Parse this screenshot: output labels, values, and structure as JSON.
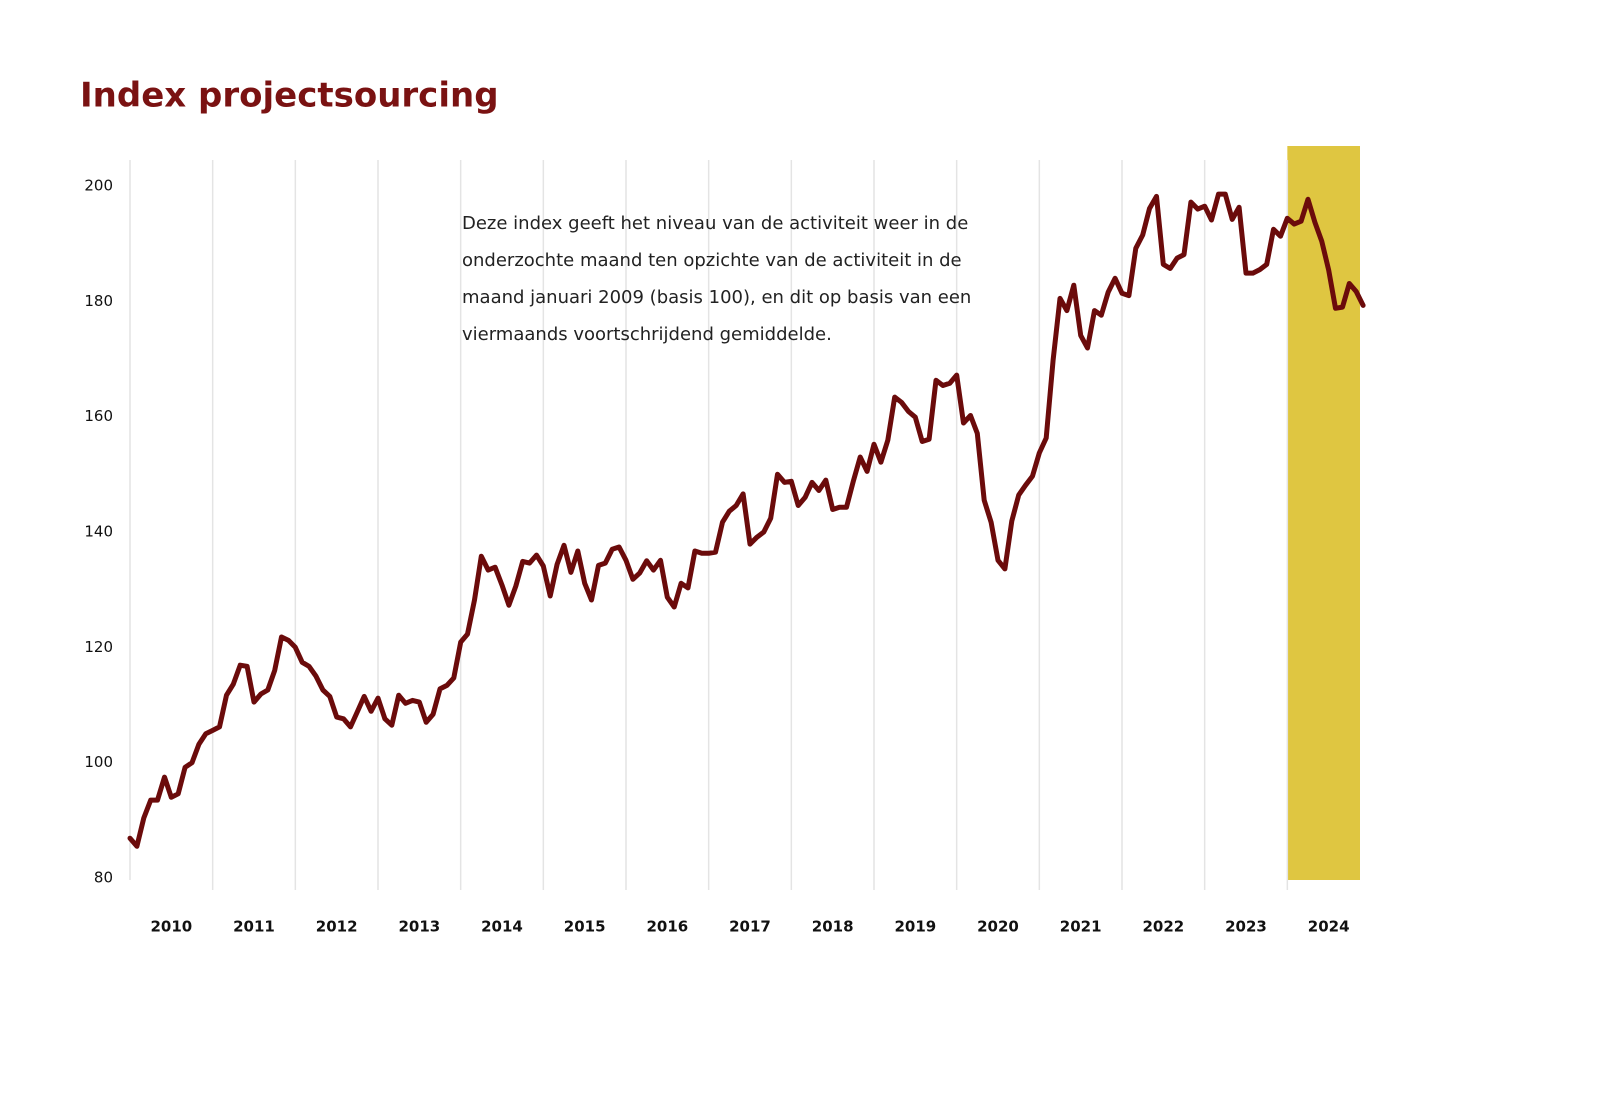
{
  "chart_data": {
    "type": "line",
    "title": "Index projectsourcing",
    "annotation": [
      "Deze index geeft het niveau van de activiteit weer in de",
      "onderzochte maand ten opzichte van de activiteit in de",
      "maand januari 2009 (basis 100), en dit op basis van een",
      "viermaands voortschrijdend gemiddelde."
    ],
    "x": [
      2010,
      2010.083,
      2010.167,
      2010.25,
      2010.333,
      2010.417,
      2010.5,
      2010.583,
      2010.667,
      2010.75,
      2010.833,
      2010.917,
      2011,
      2011.083,
      2011.167,
      2011.25,
      2011.333,
      2011.417,
      2011.5,
      2011.583,
      2011.667,
      2011.75,
      2011.833,
      2011.917,
      2012,
      2012.083,
      2012.167,
      2012.25,
      2012.333,
      2012.417,
      2012.5,
      2012.583,
      2012.667,
      2012.75,
      2012.833,
      2012.917,
      2013,
      2013.083,
      2013.167,
      2013.25,
      2013.333,
      2013.417,
      2013.5,
      2013.583,
      2013.667,
      2013.75,
      2013.833,
      2013.917,
      2014,
      2014.083,
      2014.167,
      2014.25,
      2014.333,
      2014.417,
      2014.5,
      2014.583,
      2014.667,
      2014.75,
      2014.833,
      2014.917,
      2015,
      2015.083,
      2015.167,
      2015.25,
      2015.333,
      2015.417,
      2015.5,
      2015.583,
      2015.667,
      2015.75,
      2015.833,
      2015.917,
      2016,
      2016.083,
      2016.167,
      2016.25,
      2016.333,
      2016.417,
      2016.5,
      2016.583,
      2016.667,
      2016.75,
      2016.833,
      2016.917,
      2017,
      2017.083,
      2017.167,
      2017.25,
      2017.333,
      2017.417,
      2017.5,
      2017.583,
      2017.667,
      2017.75,
      2017.833,
      2017.917,
      2018,
      2018.083,
      2018.167,
      2018.25,
      2018.333,
      2018.417,
      2018.5,
      2018.583,
      2018.667,
      2018.75,
      2018.833,
      2018.917,
      2019,
      2019.083,
      2019.167,
      2019.25,
      2019.333,
      2019.417,
      2019.5,
      2019.583,
      2019.667,
      2019.75,
      2019.833,
      2019.917,
      2020,
      2020.083,
      2020.167,
      2020.25,
      2020.333,
      2020.417,
      2020.5,
      2020.583,
      2020.667,
      2020.75,
      2020.833,
      2020.917,
      2021,
      2021.083,
      2021.167,
      2021.25,
      2021.333,
      2021.417,
      2021.5,
      2021.583,
      2021.667,
      2021.75,
      2021.833,
      2021.917,
      2022,
      2022.083,
      2022.167,
      2022.25,
      2022.333,
      2022.417,
      2022.5,
      2022.583,
      2022.667,
      2022.75,
      2022.833,
      2022.917,
      2023,
      2023.083,
      2023.167,
      2023.25,
      2023.333,
      2023.417,
      2023.5,
      2023.583,
      2023.667,
      2023.75,
      2023.833,
      2023.917,
      2024,
      2024.083,
      2024.167,
      2024.25,
      2024.333,
      2024.417,
      2024.5,
      2024.583,
      2024.667,
      2024.75,
      2024.833,
      2024.917
    ],
    "series": [
      {
        "color": "#6b0b0b",
        "values": [
          86.9,
          85.5,
          90.4,
          93.5,
          93.5,
          97.5,
          94,
          94.6,
          99.2,
          100,
          103.2,
          105,
          105.6,
          106.2,
          111.7,
          113.6,
          116.9,
          116.7,
          110.5,
          111.9,
          112.6,
          116,
          121.8,
          121.2,
          120,
          117.4,
          116.7,
          115,
          112.6,
          111.5,
          107.9,
          107.6,
          106.2,
          108.8,
          111.5,
          108.9,
          111.2,
          107.6,
          106.5,
          111.7,
          110.3,
          110.8,
          110.5,
          107,
          108.4,
          112.8,
          113.4,
          114.7,
          120.9,
          122.3,
          128.2,
          135.8,
          133.4,
          133.9,
          130.8,
          127.3,
          130.6,
          134.9,
          134.6,
          136,
          134.1,
          128.9,
          134.4,
          137.7,
          133,
          136.7,
          131.1,
          128.2,
          134.2,
          134.6,
          137,
          137.4,
          135.1,
          131.8,
          132.9,
          135,
          133.4,
          135.1,
          128.7,
          127,
          131.1,
          130.3,
          136.7,
          136.3,
          136.3,
          136.5,
          141.7,
          143.6,
          144.6,
          146.6,
          137.9,
          139.1,
          140,
          142.4,
          150,
          148.6,
          148.8,
          144.6,
          146,
          148.6,
          147.2,
          149,
          143.9,
          144.3,
          144.3,
          148.8,
          153,
          150.5,
          155.2,
          152.1,
          155.9,
          163.4,
          162.5,
          160.9,
          159.9,
          155.7,
          156.1,
          166.3,
          165.4,
          165.8,
          167.2,
          158.9,
          160.2,
          157.1,
          145.5,
          141.7,
          135.1,
          133.6,
          141.9,
          146.4,
          148.1,
          149.7,
          153.7,
          156.3,
          169.8,
          180.5,
          178.4,
          182.8,
          174.1,
          171.9,
          178.4,
          177.6,
          181.6,
          184,
          181.4,
          181,
          189.2,
          191.5,
          196.1,
          198.2,
          186.4,
          185.7,
          187.5,
          188.1,
          197.2,
          196,
          196.5,
          194.1,
          198.6,
          198.6,
          194.2,
          196.3,
          184.9,
          184.9,
          185.5,
          186.4,
          192.5,
          191.3,
          194.4,
          193.4,
          193.9,
          197.7,
          193.7,
          190.4,
          185.4,
          178.8,
          179,
          183.1,
          181.7,
          179.3
        ]
      }
    ],
    "xlim": [
      2010,
      2025
    ],
    "xgrid": [
      2010,
      2011,
      2012,
      2013,
      2014,
      2015,
      2016,
      2017,
      2018,
      2019,
      2020,
      2021,
      2022,
      2023,
      2024
    ],
    "xticks": [
      {
        "value": 2010.5,
        "label": "2010"
      },
      {
        "value": 2011.5,
        "label": "2011"
      },
      {
        "value": 2012.5,
        "label": "2012"
      },
      {
        "value": 2013.5,
        "label": "2013"
      },
      {
        "value": 2014.5,
        "label": "2014"
      },
      {
        "value": 2015.5,
        "label": "2015"
      },
      {
        "value": 2016.5,
        "label": "2016"
      },
      {
        "value": 2017.5,
        "label": "2017"
      },
      {
        "value": 2018.5,
        "label": "2018"
      },
      {
        "value": 2019.5,
        "label": "2019"
      },
      {
        "value": 2020.5,
        "label": "2020"
      },
      {
        "value": 2021.5,
        "label": "2021"
      },
      {
        "value": 2022.5,
        "label": "2022"
      },
      {
        "value": 2023.5,
        "label": "2023"
      },
      {
        "value": 2024.5,
        "label": "2024"
      }
    ],
    "ylim": [
      80,
      200
    ],
    "yticks": [
      80,
      100,
      120,
      140,
      160,
      180,
      200
    ],
    "highlight": {
      "from": 2024,
      "to": 2025,
      "color": "#dfc641"
    }
  }
}
